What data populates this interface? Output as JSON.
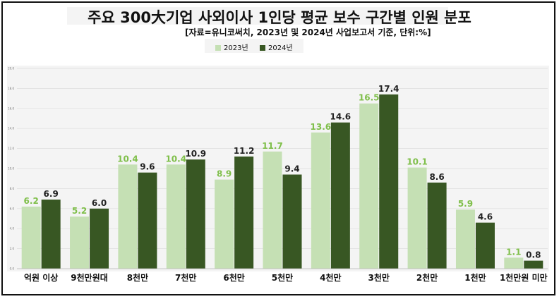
{
  "chart_data": {
    "type": "bar",
    "title": "주요 300大기업 사외이사 1인당 평균 보수 구간별 인원 분포",
    "subtitle": "[자료=유니코써치, 2023년 및 2024년 사업보고서 기준, 단위:%]",
    "categories": [
      "억원 이상",
      "9천만원대",
      "8천만",
      "7천만",
      "6천만",
      "5천만",
      "4천만",
      "3천만",
      "2천만",
      "1천만",
      "1천만원 미만"
    ],
    "series": [
      {
        "name": "2023년",
        "color": "#c5e0b4",
        "label_color": "#7fbf4a",
        "values": [
          6.2,
          5.2,
          10.4,
          10.4,
          8.9,
          11.7,
          13.6,
          16.5,
          10.1,
          5.9,
          1.1
        ]
      },
      {
        "name": "2024년",
        "color": "#385723",
        "label_color": "#222222",
        "values": [
          6.9,
          6.0,
          9.6,
          10.9,
          11.2,
          9.4,
          14.6,
          17.4,
          8.6,
          4.6,
          0.8
        ]
      }
    ],
    "ylim": [
      0,
      20
    ],
    "yticks": [
      "0.0",
      "2.0",
      "4.0",
      "6.0",
      "8.0",
      "10.0",
      "12.0",
      "14.0",
      "16.0",
      "18.0",
      "20.0"
    ],
    "grid": true,
    "legend": "top-center"
  }
}
